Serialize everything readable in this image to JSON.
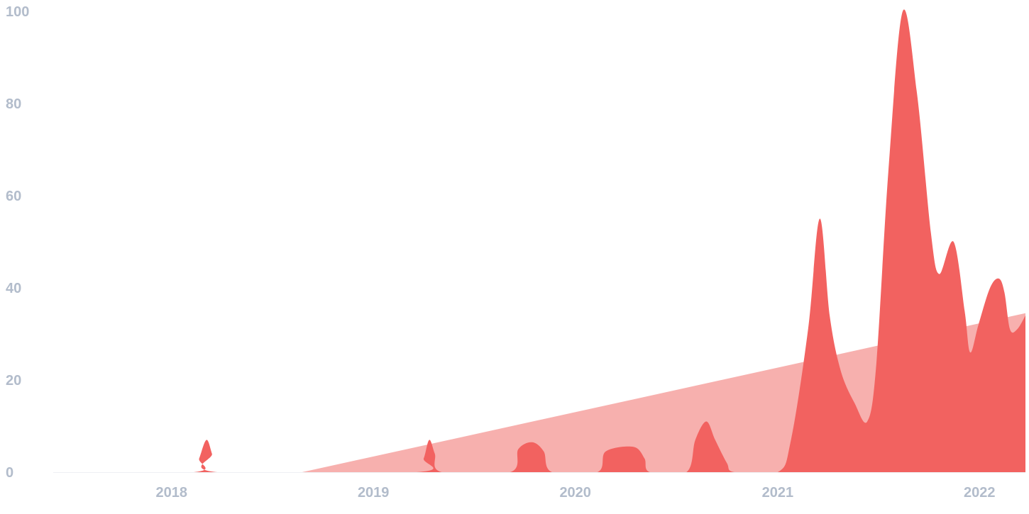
{
  "chart_data": {
    "type": "area",
    "title": "",
    "xlabel": "",
    "ylabel": "",
    "grid": false,
    "legend": "none",
    "xlim": [
      "2017-06-01",
      "2022-03-25"
    ],
    "ylim": [
      0,
      100
    ],
    "x_ticks": [
      "2018",
      "2019",
      "2020",
      "2021",
      "2022"
    ],
    "y_ticks": [
      "0",
      "20",
      "40",
      "60",
      "80",
      "100"
    ],
    "colors": {
      "series": "#f26260",
      "trend": "#f7b0ae",
      "tick_text": "#b2bccb",
      "baseline": "#eef0f3"
    },
    "series": [
      {
        "role": "values",
        "points": [
          [
            "2017-06-01",
            0
          ],
          [
            "2018-02-10",
            0
          ],
          [
            "2018-02-20",
            3
          ],
          [
            "2018-03-05",
            7
          ],
          [
            "2018-03-15",
            4
          ],
          [
            "2018-03-25",
            0
          ],
          [
            "2019-03-20",
            0
          ],
          [
            "2019-04-02",
            3
          ],
          [
            "2019-04-12",
            7
          ],
          [
            "2019-04-22",
            4
          ],
          [
            "2019-05-05",
            0
          ],
          [
            "2019-09-05",
            0
          ],
          [
            "2019-09-20",
            5
          ],
          [
            "2019-10-15",
            6.5
          ],
          [
            "2019-11-05",
            4.5
          ],
          [
            "2019-11-20",
            0
          ],
          [
            "2020-02-10",
            0
          ],
          [
            "2020-02-25",
            4.5
          ],
          [
            "2020-04-15",
            5.5
          ],
          [
            "2020-05-05",
            3
          ],
          [
            "2020-05-15",
            0
          ],
          [
            "2020-07-20",
            0
          ],
          [
            "2020-08-05",
            7
          ],
          [
            "2020-08-25",
            11
          ],
          [
            "2020-09-10",
            7
          ],
          [
            "2020-10-01",
            2
          ],
          [
            "2020-10-15",
            0
          ],
          [
            "2021-01-01",
            0
          ],
          [
            "2021-01-25",
            7
          ],
          [
            "2021-02-25",
            31
          ],
          [
            "2021-03-18",
            55
          ],
          [
            "2021-04-05",
            34
          ],
          [
            "2021-04-25",
            22
          ],
          [
            "2021-05-20",
            15
          ],
          [
            "2021-06-12",
            11
          ],
          [
            "2021-06-28",
            23
          ],
          [
            "2021-07-20",
            65
          ],
          [
            "2021-08-15",
            100
          ],
          [
            "2021-09-10",
            82
          ],
          [
            "2021-10-05",
            52
          ],
          [
            "2021-10-20",
            43
          ],
          [
            "2021-11-15",
            50
          ],
          [
            "2021-12-05",
            35
          ],
          [
            "2021-12-15",
            26
          ],
          [
            "2021-12-30",
            32
          ],
          [
            "2022-01-20",
            40
          ],
          [
            "2022-02-05",
            42
          ],
          [
            "2022-02-15",
            39
          ],
          [
            "2022-02-25",
            31
          ],
          [
            "2022-03-10",
            31
          ],
          [
            "2022-03-25",
            34
          ]
        ]
      },
      {
        "role": "trend",
        "points": [
          [
            "2018-08-25",
            0
          ],
          [
            "2022-03-25",
            34.5
          ]
        ]
      }
    ]
  }
}
